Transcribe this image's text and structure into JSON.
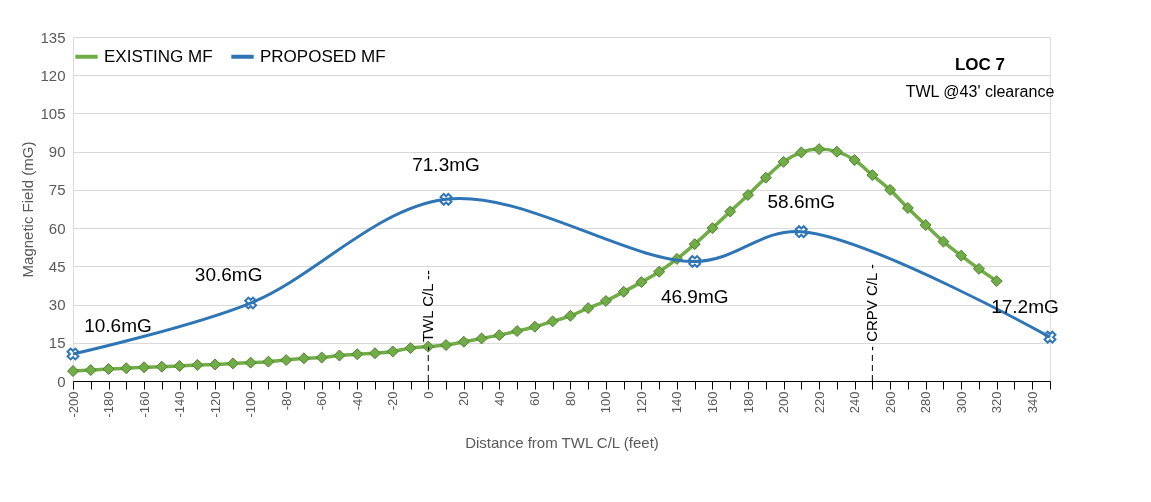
{
  "chart_data": {
    "type": "line",
    "xlabel": "Distance from TWL C/L (feet)",
    "ylabel": "Magnetic Field (mG)",
    "xlim": [
      -200,
      350
    ],
    "ylim": [
      0,
      135
    ],
    "xticks": [
      -200,
      {
        "value": -190,
        "label": null
      },
      -180,
      {
        "value": -170,
        "label": null
      },
      -160,
      {
        "value": -150,
        "label": null
      },
      -140,
      {
        "value": -130,
        "label": null
      },
      -120,
      {
        "value": -110,
        "label": null
      },
      -100,
      {
        "value": -90,
        "label": null
      },
      -80,
      {
        "value": -70,
        "label": null
      },
      -60,
      {
        "value": -50,
        "label": null
      },
      -40,
      {
        "value": -30,
        "label": null
      },
      -20,
      {
        "value": -10,
        "label": null
      },
      0,
      {
        "value": 10,
        "label": null
      },
      20,
      {
        "value": 30,
        "label": null
      },
      40,
      {
        "value": 50,
        "label": null
      },
      60,
      {
        "value": 70,
        "label": null
      },
      80,
      {
        "value": 90,
        "label": null
      },
      100,
      {
        "value": 110,
        "label": null
      },
      120,
      {
        "value": 130,
        "label": null
      },
      140,
      {
        "value": 150,
        "label": null
      },
      160,
      {
        "value": 170,
        "label": null
      },
      180,
      {
        "value": 190,
        "label": null
      },
      200,
      {
        "value": 210,
        "label": null
      },
      220,
      {
        "value": 230,
        "label": null
      },
      240,
      {
        "value": 250,
        "label": null
      },
      260,
      {
        "value": 270,
        "label": null
      },
      280,
      {
        "value": 290,
        "label": null
      },
      300,
      {
        "value": 310,
        "label": null
      },
      320,
      {
        "value": 330,
        "label": null
      },
      340,
      {
        "value": 350,
        "label": null
      }
    ],
    "yticks": [
      0,
      15,
      30,
      45,
      60,
      75,
      90,
      105,
      120,
      135
    ],
    "grid": "y",
    "legend": "top",
    "series": [
      {
        "name": "EXISTING MF",
        "color": "#70ad47",
        "marker": "diamond",
        "x": [
          -200,
          -190,
          -180,
          -170,
          -160,
          -150,
          -140,
          -130,
          -120,
          -110,
          -100,
          -90,
          -80,
          -70,
          -60,
          -50,
          -40,
          -30,
          -20,
          -10,
          0,
          10,
          20,
          30,
          40,
          50,
          60,
          70,
          80,
          90,
          100,
          110,
          120,
          130,
          140,
          150,
          160,
          170,
          180,
          190,
          200,
          210,
          220,
          230,
          240,
          250,
          260,
          270,
          280,
          290,
          300,
          310,
          320
        ],
        "values": [
          3.9,
          4.3,
          4.7,
          5.0,
          5.4,
          5.6,
          5.9,
          6.3,
          6.5,
          6.9,
          7.2,
          7.6,
          8.2,
          8.9,
          9.2,
          10.0,
          10.5,
          10.9,
          11.6,
          12.9,
          13.5,
          14.1,
          15.4,
          16.7,
          18.0,
          19.6,
          21.3,
          23.4,
          25.6,
          28.6,
          31.4,
          35.0,
          38.8,
          42.9,
          47.9,
          53.7,
          60.0,
          66.5,
          73.0,
          79.8,
          86.0,
          89.7,
          91.0,
          90.0,
          86.7,
          80.8,
          75.0,
          67.9,
          61.2,
          54.7,
          49.2,
          44.0,
          39.2
        ]
      },
      {
        "name": "PROPOSED MF",
        "color": "#2e75b6",
        "marker": "cross",
        "x": [
          -200,
          -100,
          10,
          150,
          210,
          350
        ],
        "values": [
          10.6,
          30.6,
          71.3,
          46.9,
          58.6,
          17.2
        ],
        "value_labels": [
          "10.6mG",
          "30.6mG",
          "71.3mG",
          "46.9mG",
          "58.6mG",
          "17.2mG"
        ]
      }
    ],
    "ref_lines": [
      {
        "axis": "x",
        "value": 0,
        "label": "- TWL C/L --",
        "line_style": "dashed"
      },
      {
        "axis": "x",
        "value": 250,
        "label": "- CRPV C/L -",
        "line_style": "dashed"
      }
    ],
    "annotations": [
      "LOC 7",
      "TWL @43' clearance"
    ]
  }
}
